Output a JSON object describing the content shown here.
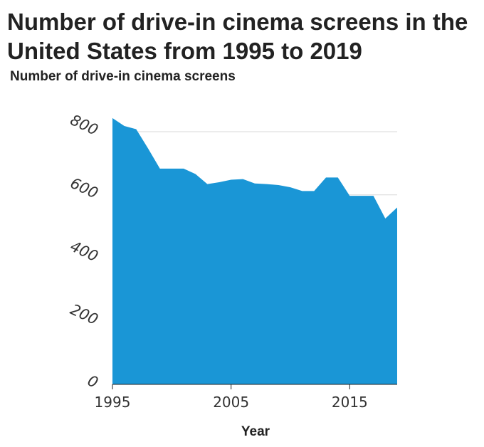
{
  "chart_data": {
    "type": "area",
    "title": "Number of drive-in cinema screens in the United States from 1995 to 2019",
    "ylabel": "Number of drive-in cinema screens",
    "xlabel": "Year",
    "x": [
      1995,
      1996,
      1997,
      1998,
      1999,
      2000,
      2001,
      2002,
      2003,
      2004,
      2005,
      2006,
      2007,
      2008,
      2009,
      2010,
      2011,
      2012,
      2013,
      2014,
      2015,
      2016,
      2017,
      2018,
      2019
    ],
    "values": [
      843,
      818,
      808,
      747,
      683,
      683,
      683,
      666,
      634,
      640,
      648,
      650,
      636,
      634,
      631,
      624,
      612,
      612,
      655,
      655,
      597,
      597,
      597,
      525,
      560
    ],
    "ylim": [
      0,
      800
    ],
    "yticks": [
      "0",
      "200",
      "400",
      "600",
      "800"
    ],
    "xticks": [
      "1995",
      "2005",
      "2015"
    ],
    "grid": true,
    "fill_color": "#1a96d6",
    "grid_color": "#d9d9d9"
  }
}
